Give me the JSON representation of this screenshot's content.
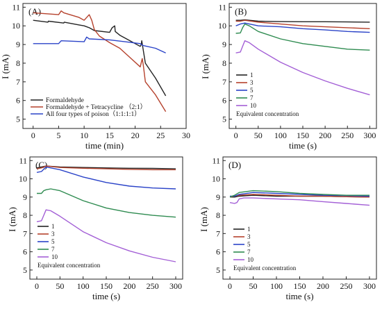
{
  "chart_data": [
    {
      "panel": "(A)",
      "type": "line",
      "xlabel": "time (min)",
      "ylabel": "I (mA)",
      "xlim": [
        -2,
        30
      ],
      "ylim": [
        4.5,
        11.2
      ],
      "xticks": [
        0,
        5,
        10,
        15,
        20,
        25,
        30
      ],
      "yticks": [
        5,
        6,
        7,
        8,
        9,
        10,
        11
      ],
      "legend_position": "bottom-left",
      "series": [
        {
          "name": "Formaldehyde",
          "color": "#222222",
          "x": [
            0,
            2.9,
            3,
            6,
            6.1,
            9,
            10,
            11,
            12,
            15,
            15.5,
            16,
            16.1,
            17,
            18,
            19,
            20,
            21,
            21.2,
            21.3,
            22,
            24,
            26
          ],
          "y": [
            10.3,
            10.2,
            10.25,
            10.15,
            10.2,
            10.05,
            10.0,
            9.9,
            9.75,
            9.65,
            9.9,
            10.0,
            9.7,
            9.5,
            9.35,
            9.2,
            9.05,
            8.9,
            9.0,
            9.2,
            8.0,
            7.2,
            6.25
          ]
        },
        {
          "name": "Formaldehyde + Tetracycline （2:1）",
          "color": "#b5412c",
          "x": [
            0,
            5,
            5.5,
            6,
            9,
            10,
            11,
            11.5,
            12,
            13,
            15,
            17,
            19,
            21,
            21.4,
            21.6,
            22,
            24,
            26
          ],
          "y": [
            10.7,
            10.6,
            10.8,
            10.7,
            10.45,
            10.3,
            10.6,
            10.3,
            9.8,
            9.45,
            9.1,
            8.8,
            8.3,
            7.8,
            8.25,
            7.9,
            7.0,
            6.3,
            5.4
          ]
        },
        {
          "name": "All four types of poison（1:1:1:1）",
          "color": "#2a43c8",
          "x": [
            0,
            5,
            5.5,
            10,
            10.5,
            11,
            15,
            18,
            21,
            21.5,
            24,
            26
          ],
          "y": [
            9.05,
            9.05,
            9.2,
            9.15,
            9.4,
            9.3,
            9.25,
            9.15,
            9.05,
            8.95,
            8.8,
            8.55
          ]
        }
      ]
    },
    {
      "panel": "(B)",
      "type": "line",
      "xlabel": "time (s)",
      "ylabel": "I (mA)",
      "xlim": [
        -15,
        315
      ],
      "ylim": [
        4.5,
        11.2
      ],
      "xticks": [
        0,
        50,
        100,
        150,
        200,
        250,
        300
      ],
      "yticks": [
        5,
        6,
        7,
        8,
        9,
        10,
        11
      ],
      "legend_position": "bottom-left",
      "legend_note": "Equivalent concentration",
      "series": [
        {
          "name": "1",
          "color": "#222222",
          "x": [
            0,
            10,
            20,
            50,
            100,
            150,
            200,
            250,
            300
          ],
          "y": [
            10.3,
            10.3,
            10.32,
            10.25,
            10.23,
            10.22,
            10.22,
            10.21,
            10.2
          ]
        },
        {
          "name": "3",
          "color": "#b5412c",
          "x": [
            0,
            10,
            20,
            50,
            100,
            150,
            200,
            250,
            300
          ],
          "y": [
            10.25,
            10.25,
            10.3,
            10.2,
            10.1,
            10.0,
            9.95,
            9.9,
            9.85
          ]
        },
        {
          "name": "5",
          "color": "#2a43c8",
          "x": [
            0,
            10,
            20,
            50,
            100,
            150,
            200,
            250,
            300
          ],
          "y": [
            10.0,
            10.1,
            10.15,
            10.0,
            9.95,
            9.85,
            9.78,
            9.7,
            9.65
          ]
        },
        {
          "name": "7",
          "color": "#2e8b50",
          "x": [
            0,
            10,
            15,
            20,
            30,
            50,
            100,
            150,
            200,
            250,
            300
          ],
          "y": [
            9.6,
            9.62,
            9.9,
            10.1,
            10.0,
            9.7,
            9.3,
            9.05,
            8.9,
            8.75,
            8.7
          ]
        },
        {
          "name": "10",
          "color": "#a35fd6",
          "x": [
            0,
            10,
            15,
            20,
            30,
            50,
            100,
            150,
            200,
            250,
            300
          ],
          "y": [
            8.55,
            8.6,
            8.9,
            9.2,
            9.1,
            8.75,
            8.05,
            7.5,
            7.05,
            6.65,
            6.3
          ]
        }
      ]
    },
    {
      "panel": "(C)",
      "type": "line",
      "xlabel": "time (s)",
      "ylabel": "I (mA)",
      "xlim": [
        -15,
        315
      ],
      "ylim": [
        4.5,
        11.2
      ],
      "xticks": [
        0,
        50,
        100,
        150,
        200,
        250,
        300
      ],
      "yticks": [
        5,
        6,
        7,
        8,
        9,
        10,
        11
      ],
      "legend_position": "bottom-left",
      "legend_note": "Equivalent concentration",
      "series": [
        {
          "name": "1",
          "color": "#222222",
          "x": [
            0,
            10,
            20,
            50,
            100,
            150,
            200,
            250,
            300
          ],
          "y": [
            10.6,
            10.65,
            10.7,
            10.65,
            10.62,
            10.6,
            10.58,
            10.57,
            10.55
          ]
        },
        {
          "name": "3",
          "color": "#b5412c",
          "x": [
            0,
            10,
            20,
            50,
            100,
            150,
            200,
            250,
            300
          ],
          "y": [
            10.55,
            10.6,
            10.7,
            10.62,
            10.58,
            10.55,
            10.52,
            10.5,
            10.5
          ]
        },
        {
          "name": "5",
          "color": "#2a43c8",
          "x": [
            0,
            10,
            20,
            50,
            100,
            150,
            200,
            250,
            300
          ],
          "y": [
            10.35,
            10.4,
            10.65,
            10.5,
            10.1,
            9.8,
            9.6,
            9.5,
            9.45
          ]
        },
        {
          "name": "7",
          "color": "#2e8b50",
          "x": [
            0,
            10,
            15,
            20,
            30,
            50,
            100,
            150,
            200,
            250,
            300
          ],
          "y": [
            9.2,
            9.2,
            9.35,
            9.4,
            9.45,
            9.35,
            8.8,
            8.4,
            8.15,
            8.0,
            7.9
          ]
        },
        {
          "name": "10",
          "color": "#a35fd6",
          "x": [
            0,
            10,
            15,
            20,
            30,
            50,
            100,
            150,
            200,
            250,
            300
          ],
          "y": [
            7.65,
            7.7,
            8.0,
            8.3,
            8.25,
            7.95,
            7.1,
            6.5,
            6.05,
            5.7,
            5.45
          ]
        }
      ]
    },
    {
      "panel": "(D)",
      "type": "line",
      "xlabel": "time (s)",
      "ylabel": "I (mA)",
      "xlim": [
        -15,
        315
      ],
      "ylim": [
        4.5,
        11.2
      ],
      "xticks": [
        0,
        50,
        100,
        150,
        200,
        250,
        300
      ],
      "yticks": [
        5,
        6,
        7,
        8,
        9,
        10,
        11
      ],
      "legend_position": "bottom-left",
      "legend_note": "Equivalent concentration",
      "series": [
        {
          "name": "1",
          "color": "#222222",
          "x": [
            0,
            10,
            20,
            50,
            100,
            150,
            200,
            250,
            300
          ],
          "y": [
            9.0,
            9.0,
            9.05,
            9.1,
            9.05,
            9.05,
            9.05,
            9.02,
            9.0
          ]
        },
        {
          "name": "3",
          "color": "#b5412c",
          "x": [
            0,
            10,
            20,
            50,
            100,
            150,
            200,
            250,
            300
          ],
          "y": [
            9.0,
            9.05,
            9.1,
            9.15,
            9.1,
            9.05,
            9.05,
            9.02,
            9.0
          ]
        },
        {
          "name": "5",
          "color": "#2a43c8",
          "x": [
            0,
            10,
            20,
            50,
            100,
            150,
            200,
            250,
            300
          ],
          "y": [
            9.05,
            9.05,
            9.15,
            9.25,
            9.2,
            9.15,
            9.1,
            9.08,
            9.05
          ]
        },
        {
          "name": "7",
          "color": "#2e8b50",
          "x": [
            0,
            10,
            20,
            50,
            100,
            150,
            200,
            250,
            300
          ],
          "y": [
            9.0,
            9.1,
            9.25,
            9.35,
            9.3,
            9.2,
            9.15,
            9.1,
            9.1
          ]
        },
        {
          "name": "10",
          "color": "#a35fd6",
          "x": [
            0,
            10,
            15,
            20,
            30,
            50,
            100,
            150,
            200,
            250,
            300
          ],
          "y": [
            8.7,
            8.65,
            8.7,
            8.9,
            8.95,
            8.95,
            8.9,
            8.85,
            8.75,
            8.65,
            8.55
          ]
        }
      ]
    }
  ]
}
